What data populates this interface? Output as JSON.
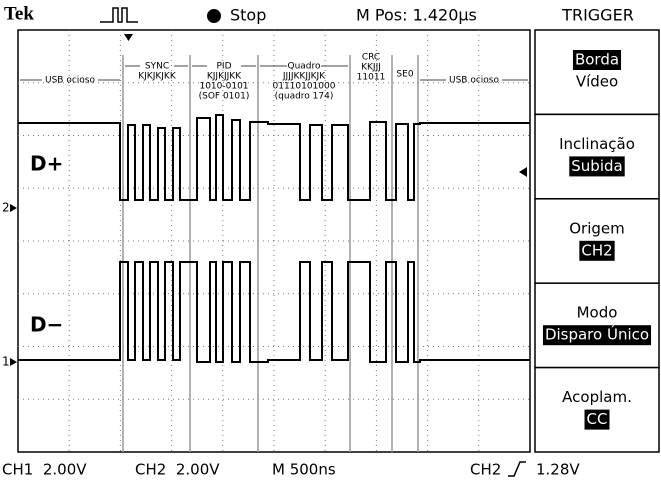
{
  "header": {
    "brand": "Tek",
    "status": "Stop",
    "position": "M Pos: 1.420µs",
    "menu_title": "TRIGGER"
  },
  "menu": [
    {
      "label": "Borda",
      "value": "Vídeo",
      "highlight": "label"
    },
    {
      "label": "Inclinação",
      "value": "Subida",
      "highlight": "value"
    },
    {
      "label": "Origem",
      "value": "CH2",
      "highlight": "value"
    },
    {
      "label": "Modo",
      "value": "Disparo Único",
      "highlight": "value"
    },
    {
      "label": "Acoplam.",
      "value": "CC",
      "highlight": "value"
    }
  ],
  "annotations": [
    {
      "lines": [
        "USB ocioso"
      ]
    },
    {
      "lines": [
        "SYNC",
        "KJKJKJKK"
      ]
    },
    {
      "lines": [
        "PID",
        "KJJKJJKK",
        "1010-0101",
        "(SOF 0101)"
      ]
    },
    {
      "lines": [
        "Quadro",
        "JJJJKKJJKJK",
        "01110101000",
        "(quadro 174)"
      ]
    },
    {
      "lines": [
        "CRC",
        "KKJJJ",
        "11011"
      ]
    },
    {
      "lines": [
        "SE0"
      ]
    },
    {
      "lines": [
        "USB ocioso"
      ]
    }
  ],
  "traces": {
    "top_label": "D+",
    "bottom_label": "D−",
    "ch2_marker": "2",
    "ch1_marker": "1"
  },
  "footer": {
    "ch1": "CH1  2.00V",
    "ch2": "CH2  2.00V",
    "timebase": "M 500ns",
    "trigger_source": "CH2",
    "trigger_level": "1.28V"
  }
}
